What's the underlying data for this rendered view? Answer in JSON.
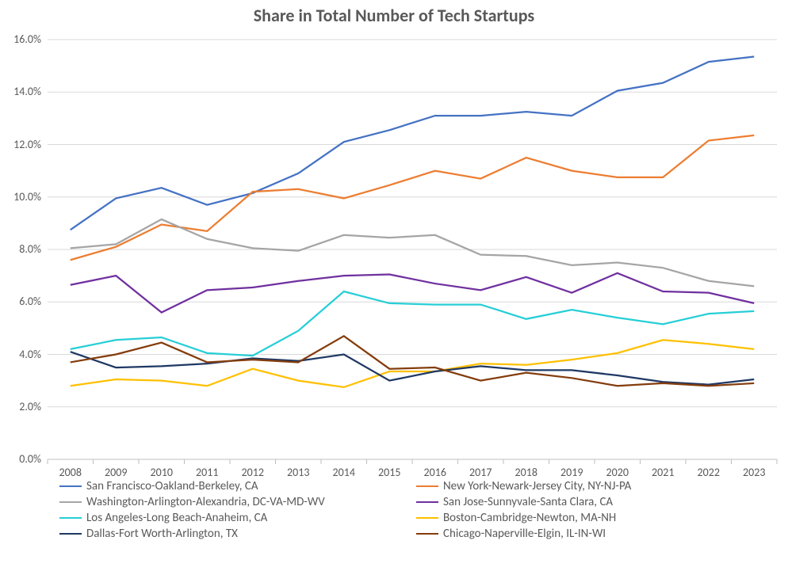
{
  "chart": {
    "type": "line",
    "title": "Share in Total Number of Tech Startups",
    "title_fontsize": 22,
    "title_fontweight": "bold",
    "background_color": "#ffffff",
    "text_color": "#595959",
    "grid_color": "#d9d9d9",
    "axis_line_color": "#bfbfbf",
    "line_width": 2.25,
    "label_fontsize": 14,
    "legend_fontsize": 15,
    "xvalues": [
      2008,
      2009,
      2010,
      2011,
      2012,
      2013,
      2014,
      2015,
      2016,
      2017,
      2018,
      2019,
      2020,
      2021,
      2022,
      2023
    ],
    "ylim": [
      0.0,
      16.0
    ],
    "ytick_step": 2.0,
    "yticks": [
      0.0,
      2.0,
      4.0,
      6.0,
      8.0,
      10.0,
      12.0,
      14.0,
      16.0
    ],
    "series": [
      {
        "name": "San Francisco-Oakland-Berkeley, CA",
        "color": "#4472c4",
        "values": [
          8.75,
          9.95,
          10.35,
          9.7,
          10.15,
          10.9,
          12.1,
          12.55,
          13.1,
          13.1,
          13.25,
          13.1,
          14.05,
          14.35,
          15.15,
          15.35
        ]
      },
      {
        "name": "New York-Newark-Jersey City, NY-NJ-PA",
        "color": "#ed7d31",
        "values": [
          7.6,
          8.1,
          8.95,
          8.7,
          10.2,
          10.3,
          9.95,
          10.45,
          11.0,
          10.7,
          11.5,
          11.0,
          10.75,
          10.75,
          12.15,
          12.35
        ]
      },
      {
        "name": "Washington-Arlington-Alexandria, DC-VA-MD-WV",
        "color": "#a5a5a5",
        "values": [
          8.05,
          8.2,
          9.15,
          8.4,
          8.05,
          7.95,
          8.55,
          8.45,
          8.55,
          7.8,
          7.75,
          7.4,
          7.5,
          7.3,
          6.8,
          6.6
        ]
      },
      {
        "name": "San Jose-Sunnyvale-Santa Clara, CA",
        "color": "#7030a0",
        "values": [
          6.65,
          7.0,
          5.6,
          6.45,
          6.55,
          6.8,
          7.0,
          7.05,
          6.7,
          6.45,
          6.95,
          6.35,
          7.1,
          6.4,
          6.35,
          5.95
        ]
      },
      {
        "name": "Los Angeles-Long Beach-Anaheim, CA",
        "color": "#27ced7",
        "values": [
          4.2,
          4.55,
          4.65,
          4.05,
          3.95,
          4.9,
          6.4,
          5.95,
          5.9,
          5.9,
          5.35,
          5.7,
          5.4,
          5.15,
          5.55,
          5.65
        ]
      },
      {
        "name": "Boston-Cambridge-Newton, MA-NH",
        "color": "#ffc000",
        "values": [
          2.8,
          3.05,
          3.0,
          2.8,
          3.45,
          3.0,
          2.75,
          3.35,
          3.35,
          3.65,
          3.6,
          3.8,
          4.05,
          4.55,
          4.4,
          4.2
        ]
      },
      {
        "name": "Dallas-Fort Worth-Arlington, TX",
        "color": "#1f3864",
        "values": [
          4.1,
          3.5,
          3.55,
          3.65,
          3.85,
          3.75,
          4.0,
          3.0,
          3.35,
          3.55,
          3.4,
          3.4,
          3.2,
          2.95,
          2.85,
          3.05
        ]
      },
      {
        "name": "Chicago-Naperville-Elgin, IL-IN-WI",
        "color": "#843c0c",
        "values": [
          3.7,
          4.0,
          4.45,
          3.7,
          3.8,
          3.7,
          4.7,
          3.45,
          3.5,
          3.0,
          3.3,
          3.1,
          2.8,
          2.9,
          2.8,
          2.9
        ]
      }
    ]
  }
}
